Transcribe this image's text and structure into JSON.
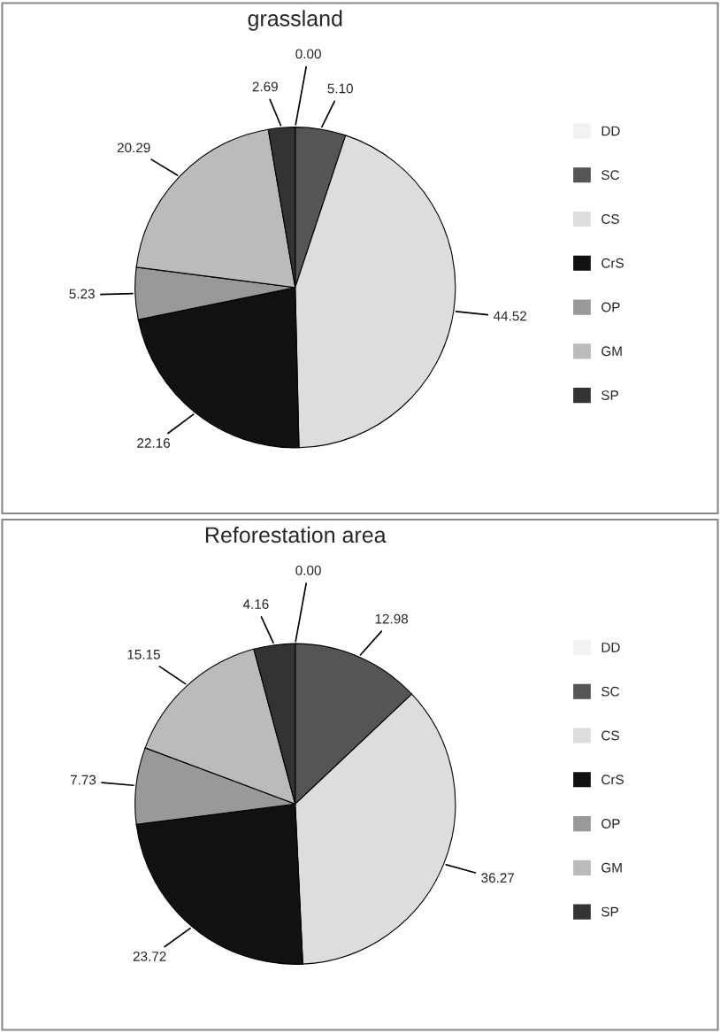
{
  "chart_data": [
    {
      "type": "pie",
      "title": "grassland",
      "categories": [
        "DD",
        "SC",
        "CS",
        "CrS",
        "OP",
        "GM",
        "SP"
      ],
      "values": [
        0.0,
        5.1,
        44.52,
        22.16,
        5.23,
        20.29,
        2.69
      ],
      "value_labels": [
        "0.00",
        "5.10",
        "44.52",
        "22.16",
        "5.23",
        "20.29",
        "2.69"
      ],
      "colors": [
        "#f2f2f2",
        "#555555",
        "#dddddd",
        "#111111",
        "#999999",
        "#bbbbbb",
        "#333333"
      ],
      "legend": "right"
    },
    {
      "type": "pie",
      "title": "Reforestation area",
      "categories": [
        "DD",
        "SC",
        "CS",
        "CrS",
        "OP",
        "GM",
        "SP"
      ],
      "values": [
        0.0,
        12.98,
        36.27,
        23.72,
        7.73,
        15.15,
        4.16
      ],
      "value_labels": [
        "0.00",
        "12.98",
        "36.27",
        "23.72",
        "7.73",
        "15.15",
        "4.16"
      ],
      "colors": [
        "#f2f2f2",
        "#555555",
        "#dddddd",
        "#111111",
        "#999999",
        "#bbbbbb",
        "#333333"
      ],
      "legend": "right"
    }
  ]
}
